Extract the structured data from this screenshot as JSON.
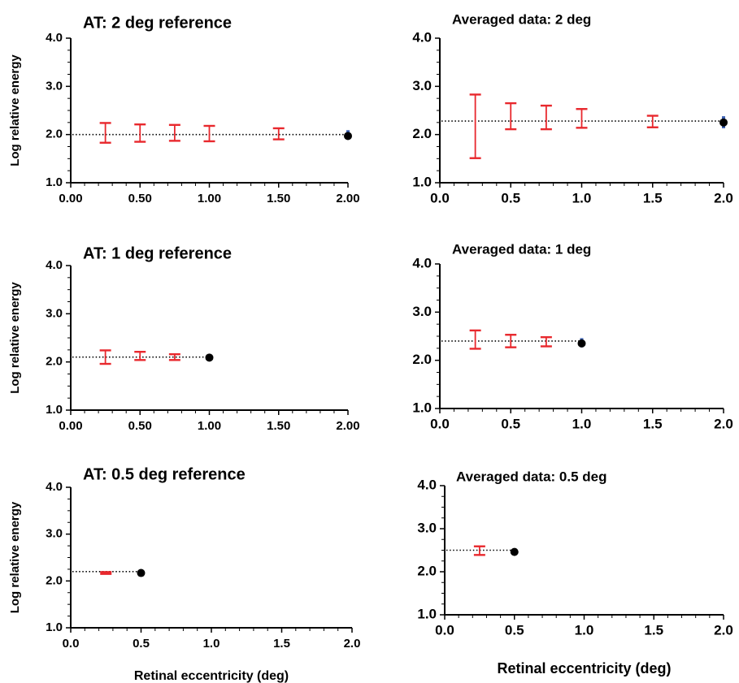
{
  "colors": {
    "error_bar": "#e8282d",
    "reference_error": "#3a5fb0",
    "reference_point": "#000000",
    "fit_line": "#000000",
    "axis": "#000000"
  },
  "chart_data": [
    {
      "type": "scatter",
      "title": "AT:  2 deg reference",
      "ylabel": "Log relative energy",
      "xlabel": "",
      "xlim": [
        0,
        2
      ],
      "ylim": [
        1,
        4
      ],
      "x_ticks": [
        0,
        0.5,
        1,
        1.5,
        2
      ],
      "x_tick_labels": [
        "0.00",
        "0.50",
        "1.00",
        "1.50",
        "2.00"
      ],
      "y_ticks": [
        1,
        2,
        3,
        4
      ],
      "y_tick_labels": [
        "1.0",
        "2.0",
        "3.0",
        "4.0"
      ],
      "reference_line": 2.0,
      "intervals": [
        {
          "x": 0.25,
          "low": 1.83,
          "high": 2.24
        },
        {
          "x": 0.5,
          "low": 1.85,
          "high": 2.21
        },
        {
          "x": 0.75,
          "low": 1.87,
          "high": 2.2
        },
        {
          "x": 1.0,
          "low": 1.86,
          "high": 2.18
        },
        {
          "x": 1.5,
          "low": 1.9,
          "high": 2.13
        }
      ],
      "reference_point": {
        "x": 2.0,
        "y": 1.97,
        "low": 1.9,
        "high": 2.09
      }
    },
    {
      "type": "scatter",
      "title": "Averaged data:  2 deg",
      "ylabel": "",
      "xlabel": "",
      "xlim": [
        0,
        2
      ],
      "ylim": [
        1,
        4
      ],
      "x_ticks": [
        0,
        0.5,
        1,
        1.5,
        2
      ],
      "x_tick_labels": [
        "0.0",
        "0.5",
        "1.0",
        "1.5",
        "2.0"
      ],
      "y_ticks": [
        1,
        2,
        3,
        4
      ],
      "y_tick_labels": [
        "1.0",
        "2.0",
        "3.0",
        "4.0"
      ],
      "reference_line": 2.28,
      "intervals": [
        {
          "x": 0.25,
          "low": 1.51,
          "high": 2.83
        },
        {
          "x": 0.5,
          "low": 2.11,
          "high": 2.65
        },
        {
          "x": 0.75,
          "low": 2.11,
          "high": 2.6
        },
        {
          "x": 1.0,
          "low": 2.14,
          "high": 2.53
        },
        {
          "x": 1.5,
          "low": 2.15,
          "high": 2.39
        }
      ],
      "reference_point": {
        "x": 2.0,
        "y": 2.25,
        "low": 2.13,
        "high": 2.38
      }
    },
    {
      "type": "scatter",
      "title": "AT:  1 deg reference",
      "ylabel": "Log relative energy",
      "xlabel": "",
      "xlim": [
        0,
        2
      ],
      "ylim": [
        1,
        4
      ],
      "x_ticks": [
        0,
        0.5,
        1,
        1.5,
        2
      ],
      "x_tick_labels": [
        "0.00",
        "0.50",
        "1.00",
        "1.50",
        "2.00"
      ],
      "y_ticks": [
        1,
        2,
        3,
        4
      ],
      "y_tick_labels": [
        "1.0",
        "2.0",
        "3.0",
        "4.0"
      ],
      "reference_line": 2.1,
      "intervals": [
        {
          "x": 0.25,
          "low": 1.96,
          "high": 2.24
        },
        {
          "x": 0.5,
          "low": 2.04,
          "high": 2.21
        },
        {
          "x": 0.75,
          "low": 2.04,
          "high": 2.16
        }
      ],
      "reference_point": {
        "x": 1.0,
        "y": 2.09,
        "low": 2.04,
        "high": 2.16
      }
    },
    {
      "type": "scatter",
      "title": "Averaged data:  1 deg",
      "ylabel": "",
      "xlabel": "",
      "xlim": [
        0,
        2
      ],
      "ylim": [
        1,
        4
      ],
      "x_ticks": [
        0,
        0.5,
        1,
        1.5,
        2
      ],
      "x_tick_labels": [
        "0.0",
        "0.5",
        "1.0",
        "1.5",
        "2.0"
      ],
      "y_ticks": [
        1,
        2,
        3,
        4
      ],
      "y_tick_labels": [
        "1.0",
        "2.0",
        "3.0",
        "4.0"
      ],
      "reference_line": 2.4,
      "intervals": [
        {
          "x": 0.25,
          "low": 2.24,
          "high": 2.62
        },
        {
          "x": 0.5,
          "low": 2.27,
          "high": 2.53
        },
        {
          "x": 0.75,
          "low": 2.29,
          "high": 2.48
        }
      ],
      "reference_point": {
        "x": 1.0,
        "y": 2.35,
        "low": 2.27,
        "high": 2.46
      }
    },
    {
      "type": "scatter",
      "title": "AT:  0.5 deg reference",
      "ylabel": "Log relative energy",
      "xlabel": "Retinal eccentricity (deg)",
      "xlim": [
        0,
        2
      ],
      "ylim": [
        1,
        4
      ],
      "x_ticks": [
        0,
        0.5,
        1,
        1.5,
        2
      ],
      "x_tick_labels": [
        "0.0",
        "0.5",
        "1.0",
        "1.5",
        "2.0"
      ],
      "y_ticks": [
        1,
        2,
        3,
        4
      ],
      "y_tick_labels": [
        "1.0",
        "2.0",
        "3.0",
        "4.0"
      ],
      "reference_line": 2.2,
      "intervals": [
        {
          "x": 0.25,
          "low": 2.15,
          "high": 2.19
        }
      ],
      "reference_point": {
        "x": 0.5,
        "y": 2.17,
        "low": 2.12,
        "high": 2.2
      }
    },
    {
      "type": "scatter",
      "title": "Averaged data: 0.5 deg",
      "ylabel": "",
      "xlabel": "Retinal eccentricity (deg)",
      "xlim": [
        0,
        2
      ],
      "ylim": [
        1,
        4
      ],
      "x_ticks": [
        0,
        0.5,
        1,
        1.5,
        2
      ],
      "x_tick_labels": [
        "0.0",
        "0.5",
        "1.0",
        "1.5",
        "2.0"
      ],
      "y_ticks": [
        1,
        2,
        3,
        4
      ],
      "y_tick_labels": [
        "1.0",
        "2.0",
        "3.0",
        "4.0"
      ],
      "reference_line": 2.5,
      "intervals": [
        {
          "x": 0.25,
          "low": 2.39,
          "high": 2.59
        }
      ],
      "reference_point": {
        "x": 0.5,
        "y": 2.46,
        "low": 2.38,
        "high": 2.53
      }
    }
  ]
}
